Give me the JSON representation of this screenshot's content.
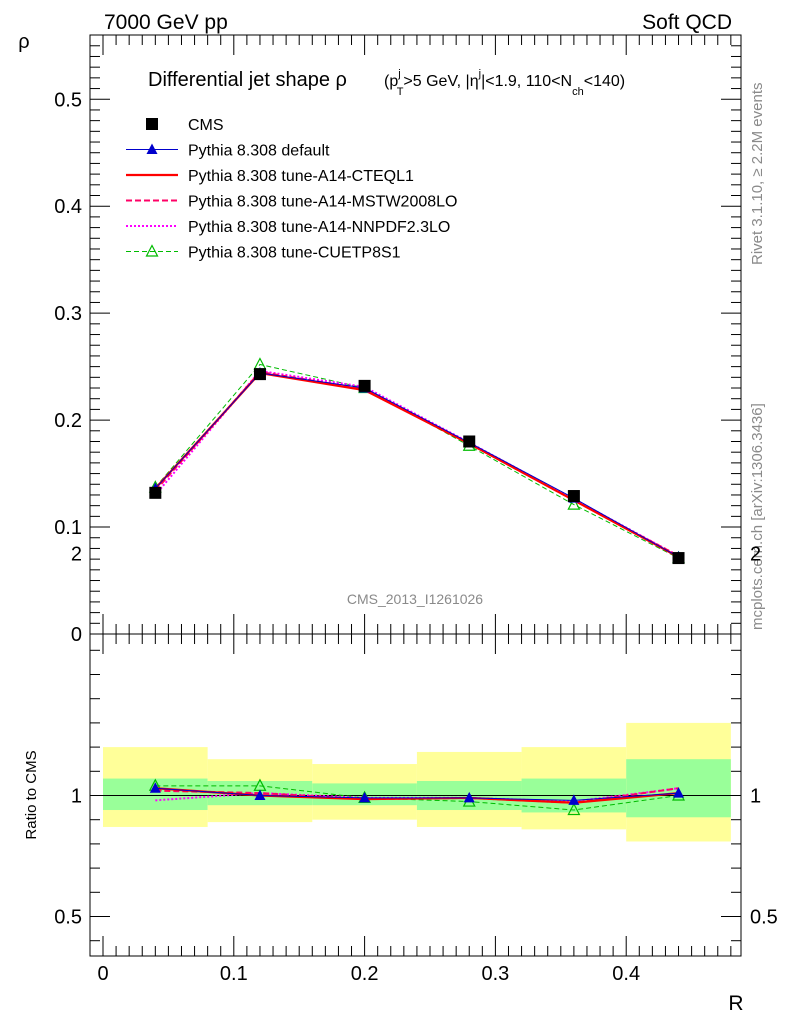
{
  "header": {
    "left": "7000 GeV pp",
    "right": "Soft QCD"
  },
  "side": {
    "rivet": "Rivet 3.1.10, ≥ 2.2M events",
    "mcplots": "mcplots.cern.ch [arXiv:1306.3436]"
  },
  "watermark": "CMS_2013_I1261026",
  "colors": {
    "cms": "#000000",
    "default": "#0000cc",
    "a14cteql1": "#ff0000",
    "mstw": "#ff0066",
    "nnpdf": "#ff00ff",
    "cuetp8s1": "#00bb00",
    "band_inner": "#99ff99",
    "band_outer": "#ffff99"
  },
  "chart_data": [
    {
      "type": "line",
      "title_main": "Differential jet shape ρ",
      "title_sub": "(p_T^j > 5 GeV, |η^j| < 1.9, 110 < N_ch < 140)",
      "xlabel": "R",
      "ylabel": "ρ",
      "xlim": [
        -0.01,
        0.48
      ],
      "ylim": [
        0,
        0.5
      ],
      "yticks": [
        "0",
        "0.1",
        "0.2",
        "0.3",
        "0.4",
        "0.5"
      ],
      "legend_placement": "top-left",
      "x": [
        0.04,
        0.12,
        0.2,
        0.28,
        0.36,
        0.44
      ],
      "series": [
        {
          "name": "CMS",
          "style": "cms",
          "values": [
            0.132,
            0.243,
            0.232,
            0.18,
            0.129,
            0.071
          ]
        },
        {
          "name": "Pythia 8.308 default",
          "style": "default",
          "values": [
            0.136,
            0.244,
            0.23,
            0.179,
            0.127,
            0.072
          ]
        },
        {
          "name": "Pythia 8.308 tune-A14-CTEQL1",
          "style": "a14cteql1",
          "values": [
            0.136,
            0.244,
            0.228,
            0.178,
            0.125,
            0.072
          ]
        },
        {
          "name": "Pythia 8.308 tune-A14-MSTW2008LO",
          "style": "mstw",
          "values": [
            0.134,
            0.245,
            0.229,
            0.178,
            0.125,
            0.073
          ]
        },
        {
          "name": "Pythia 8.308 tune-A14-NNPDF2.3LO",
          "style": "nnpdf",
          "values": [
            0.13,
            0.246,
            0.231,
            0.179,
            0.126,
            0.073
          ]
        },
        {
          "name": "Pythia 8.308 tune-CUETP8S1",
          "style": "cuetp8s1",
          "values": [
            0.137,
            0.252,
            0.23,
            0.176,
            0.121,
            0.071
          ]
        }
      ]
    },
    {
      "type": "line",
      "xlabel": "R",
      "ylabel": "Ratio to CMS",
      "xlim": [
        -0.01,
        0.48
      ],
      "ylim": [
        0.35,
        2.3
      ],
      "yticks": [
        "0.5",
        "1",
        "2"
      ],
      "xticks": [
        "0",
        "0.1",
        "0.2",
        "0.3",
        "0.4"
      ],
      "bins": [
        [
          0.0,
          0.08
        ],
        [
          0.08,
          0.16
        ],
        [
          0.16,
          0.24
        ],
        [
          0.24,
          0.32
        ],
        [
          0.32,
          0.4
        ],
        [
          0.4,
          0.48
        ]
      ],
      "band_inner": [
        [
          0.94,
          1.07
        ],
        [
          0.96,
          1.06
        ],
        [
          0.96,
          1.05
        ],
        [
          0.94,
          1.06
        ],
        [
          0.93,
          1.07
        ],
        [
          0.91,
          1.15
        ]
      ],
      "band_outer": [
        [
          0.87,
          1.2
        ],
        [
          0.89,
          1.15
        ],
        [
          0.9,
          1.13
        ],
        [
          0.87,
          1.18
        ],
        [
          0.86,
          1.2
        ],
        [
          0.81,
          1.3
        ]
      ],
      "x": [
        0.04,
        0.12,
        0.2,
        0.28,
        0.36,
        0.44
      ],
      "series": [
        {
          "name": "Pythia 8.308 default",
          "style": "default",
          "values": [
            1.03,
            1.0,
            0.99,
            0.99,
            0.98,
            1.01
          ]
        },
        {
          "name": "Pythia 8.308 tune-A14-CTEQL1",
          "style": "a14cteql1",
          "values": [
            1.03,
            1.0,
            0.985,
            0.99,
            0.97,
            1.01
          ]
        },
        {
          "name": "Pythia 8.308 tune-A14-MSTW2008LO",
          "style": "mstw",
          "values": [
            1.02,
            1.01,
            0.985,
            0.99,
            0.97,
            1.03
          ]
        },
        {
          "name": "Pythia 8.308 tune-A14-NNPDF2.3LO",
          "style": "nnpdf",
          "values": [
            0.98,
            1.01,
            0.99,
            0.99,
            0.975,
            1.03
          ]
        },
        {
          "name": "Pythia 8.308 tune-CUETP8S1",
          "style": "cuetp8s1",
          "values": [
            1.04,
            1.04,
            0.99,
            0.975,
            0.94,
            1.0
          ]
        }
      ]
    }
  ]
}
